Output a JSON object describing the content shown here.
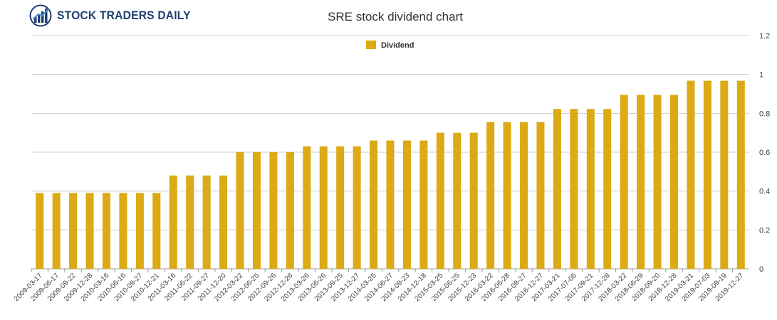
{
  "logo": {
    "text": "STOCK TRADERS DAILY",
    "icon": "bar-chart-globe-icon"
  },
  "chart_data": {
    "type": "bar",
    "title": "SRE stock dividend chart",
    "xlabel": "",
    "ylabel": "",
    "ylim": [
      0,
      1.2
    ],
    "yticks": [
      "0",
      "0.2",
      "0.4",
      "0.6",
      "0.8",
      "1",
      "1.2"
    ],
    "legend": "top-center",
    "grid": true,
    "series_color": "#dbaa14",
    "series": [
      {
        "name": "Dividend",
        "values": [
          0.39,
          0.39,
          0.39,
          0.39,
          0.39,
          0.39,
          0.39,
          0.39,
          0.48,
          0.48,
          0.48,
          0.48,
          0.6,
          0.6,
          0.6,
          0.6,
          0.63,
          0.63,
          0.63,
          0.63,
          0.66,
          0.66,
          0.66,
          0.66,
          0.7,
          0.7,
          0.7,
          0.755,
          0.755,
          0.755,
          0.755,
          0.8225,
          0.8225,
          0.8225,
          0.8225,
          0.895,
          0.895,
          0.895,
          0.895,
          0.9675,
          0.9675,
          0.9675,
          0.9675
        ]
      }
    ],
    "categories": [
      "2009-03-17",
      "2009-06-17",
      "2009-09-22",
      "2009-12-28",
      "2010-03-16",
      "2010-06-16",
      "2010-09-27",
      "2010-12-21",
      "2011-03-16",
      "2011-06-22",
      "2011-09-27",
      "2011-12-20",
      "2012-03-22",
      "2012-06-25",
      "2012-09-26",
      "2012-12-26",
      "2013-03-26",
      "2013-06-26",
      "2013-09-25",
      "2013-12-27",
      "2014-03-25",
      "2014-06-27",
      "2014-09-23",
      "2014-12-18",
      "2015-03-25",
      "2015-06-25",
      "2015-12-23",
      "2016-03-22",
      "2016-06-28",
      "2016-09-27",
      "2016-12-27",
      "2017-03-21",
      "2017-07-05",
      "2017-09-21",
      "2017-12-28",
      "2018-03-22",
      "2018-06-29",
      "2018-09-20",
      "2018-12-28",
      "2019-03-21",
      "2019-07-03",
      "2019-09-19",
      "2019-12-27"
    ]
  }
}
